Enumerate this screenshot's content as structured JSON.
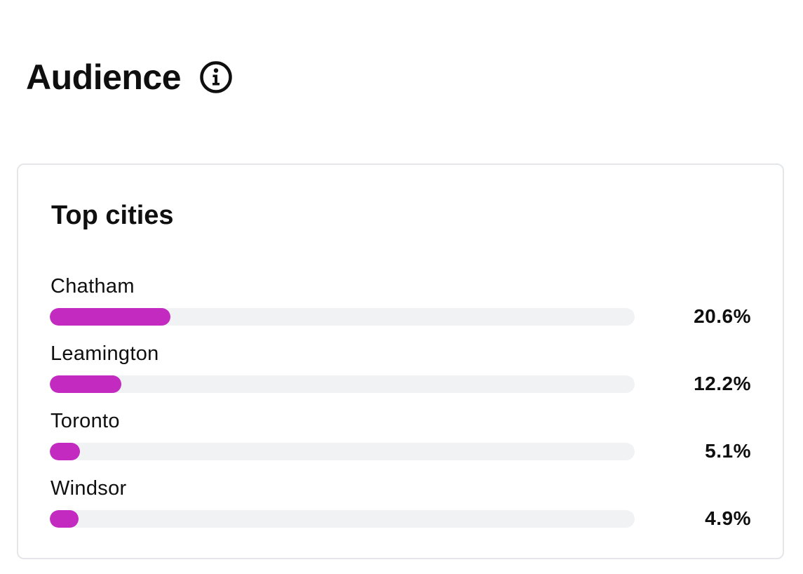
{
  "header": {
    "title": "Audience",
    "info_icon": "info-icon"
  },
  "card": {
    "title": "Top cities",
    "cities": [
      {
        "name": "Chatham",
        "percent_label": "20.6%",
        "share_of_bar": 0.206
      },
      {
        "name": "Leamington",
        "percent_label": "12.2%",
        "share_of_bar": 0.122
      },
      {
        "name": "Toronto",
        "percent_label": "5.1%",
        "share_of_bar": 0.051
      },
      {
        "name": "Windsor",
        "percent_label": "4.9%",
        "share_of_bar": 0.049
      }
    ]
  },
  "colors": {
    "bar_fill": "#c22ac0",
    "bar_track": "#f1f2f4",
    "card_border": "#e4e6e9",
    "text": "#0f0f0f"
  }
}
